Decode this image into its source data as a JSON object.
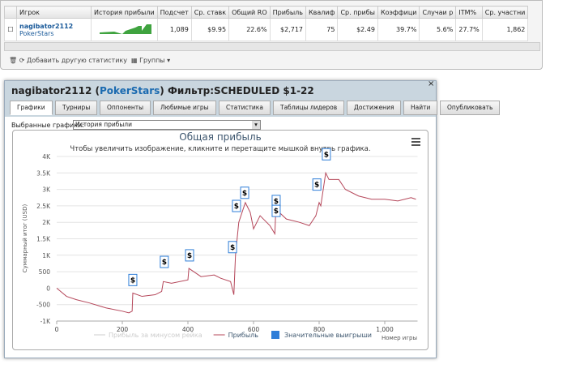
{
  "table": {
    "headers": [
      "Игрок",
      "История прибыли",
      "Подсчет",
      "Ср. ставк",
      "Общий RO",
      "Прибыль",
      "Квалиф",
      "Ср. прибы",
      "Коэффици",
      "Случаи р",
      "ITM%",
      "Ср. участни"
    ],
    "row": {
      "player": "nagibator2112",
      "site": "PokerStars",
      "cells": [
        "1,089",
        "$9.95",
        "22.6%",
        "$2,717",
        "75",
        "$2.49",
        "39.7%",
        "5.6%",
        "27.7%",
        "1,862"
      ]
    }
  },
  "toolbar": {
    "add": "Добавить другую статистику",
    "groups": "Группы"
  },
  "dialog": {
    "player": "nagibator2112",
    "site": "PokerStars",
    "filter": "Фильтр:SCHEDULED $1-22",
    "tabs": [
      "Графики",
      "Турниры",
      "Оппоненты",
      "Любимые игры",
      "Статистика",
      "Таблицы лидеров",
      "Достижения",
      "Найти",
      "Опубликовать"
    ],
    "select_label": "Выбранные графики:",
    "select_value": "История прибыли"
  },
  "chart_data": {
    "type": "line",
    "title": "Общая прибыль",
    "subtitle": "Чтобы увеличить изображение, кликните и перетащите мышкой внутрь графика.",
    "y_label": "Суммарный итог (USD)",
    "x_label": "Номер игры",
    "xlim": [
      0,
      1100
    ],
    "ylim": [
      -1000,
      4000
    ],
    "xticks": [
      0,
      200,
      400,
      600,
      800,
      {
        "value": 1000,
        "label": "1,000"
      }
    ],
    "yticks": [
      {
        "value": -1000,
        "label": "-1K"
      },
      {
        "value": -500,
        "label": "-500"
      },
      {
        "value": 0,
        "label": "0"
      },
      {
        "value": 500,
        "label": "500"
      },
      {
        "value": 1000,
        "label": "1K"
      },
      {
        "value": 1500,
        "label": "1.5K"
      },
      {
        "value": 2000,
        "label": "2K"
      },
      {
        "value": 2500,
        "label": "2.5K"
      },
      {
        "value": 3000,
        "label": "3K"
      },
      {
        "value": 3500,
        "label": "3.5K"
      },
      {
        "value": 4000,
        "label": "4K"
      }
    ],
    "x": [
      0,
      30,
      60,
      100,
      150,
      200,
      220,
      230,
      232,
      260,
      300,
      320,
      325,
      350,
      400,
      403,
      440,
      480,
      500,
      530,
      540,
      545,
      555,
      575,
      590,
      600,
      620,
      650,
      665,
      668,
      700,
      740,
      770,
      790,
      800,
      805,
      820,
      830,
      860,
      880,
      920,
      960,
      1000,
      1040,
      1080,
      1095
    ],
    "series": [
      {
        "name": "Прибыль за минусом рейка",
        "color": "#cccccc"
      },
      {
        "name": "Прибыль",
        "color": "#b5475a",
        "values": [
          0,
          -250,
          -350,
          -450,
          -600,
          -700,
          -750,
          -700,
          -150,
          -250,
          -200,
          -100,
          200,
          150,
          250,
          600,
          350,
          400,
          300,
          200,
          -200,
          1000,
          2000,
          2600,
          2300,
          1800,
          2200,
          1900,
          1650,
          2400,
          2100,
          2000,
          1900,
          2200,
          2600,
          2500,
          3500,
          3300,
          3300,
          3000,
          2800,
          2700,
          2700,
          2650,
          2750,
          2700
        ]
      }
    ],
    "markers": {
      "name": "Значительные выигрыши",
      "color": "#2f7ed8",
      "label": "$",
      "x": [
        232,
        328,
        405,
        536,
        548,
        573,
        669,
        669,
        793,
        822
      ],
      "values": [
        50,
        600,
        800,
        1050,
        2300,
        2700,
        2450,
        2150,
        2950,
        3870
      ]
    }
  }
}
